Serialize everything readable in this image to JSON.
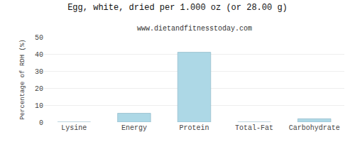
{
  "chart_data": {
    "type": "bar",
    "title": "Egg, white, dried per 1.000 oz (or 28.00 g)",
    "subtitle": "www.dietandfitnesstoday.com",
    "categories": [
      "Lysine",
      "Energy",
      "Protein",
      "Total-Fat",
      "Carbohydrate"
    ],
    "values": [
      0.0,
      5.2,
      41.0,
      0.0,
      2.0
    ],
    "color": "#add8e6",
    "ylabel": "Percentage of RDH (%)",
    "ylim": [
      0,
      50
    ],
    "yticks": [
      0,
      10,
      20,
      30,
      40,
      50
    ],
    "grid": true
  }
}
